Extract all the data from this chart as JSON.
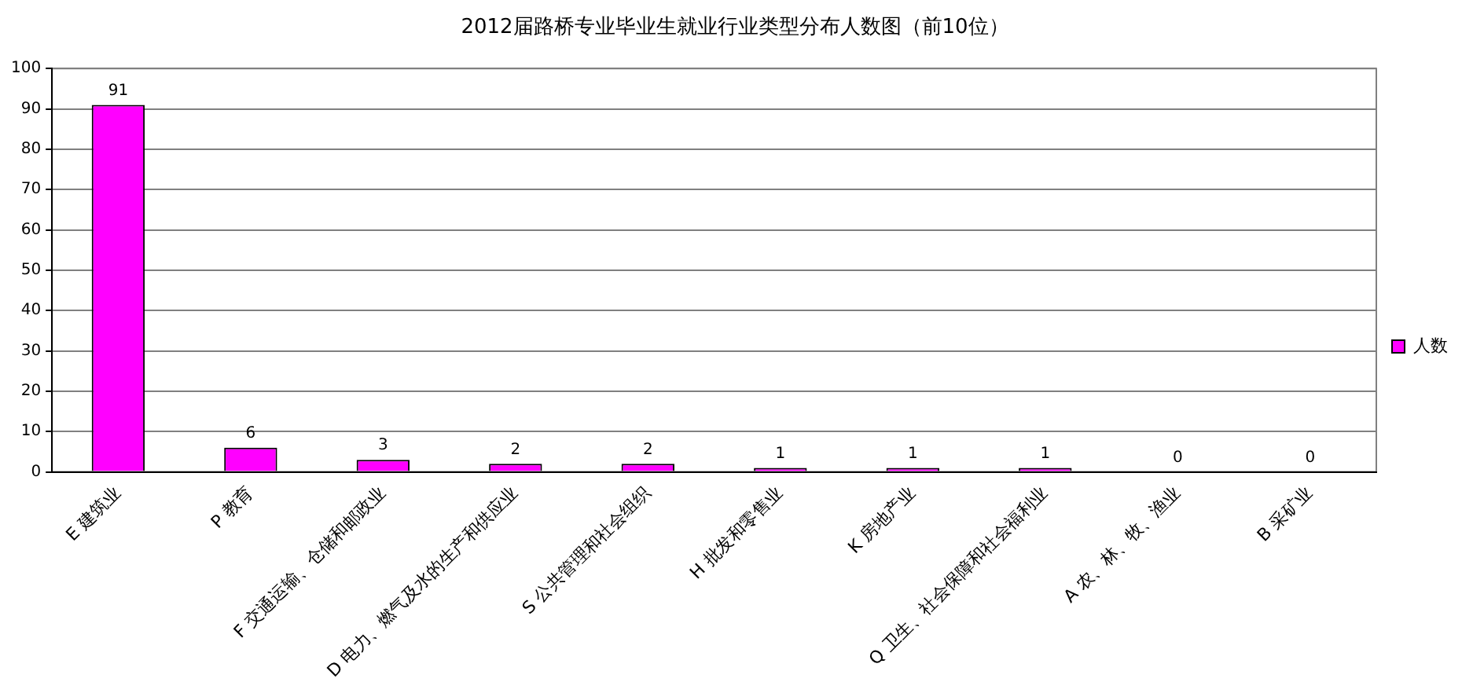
{
  "chart_data": {
    "type": "bar",
    "title": "2012届路桥专业毕业生就业行业类型分布人数图（前10位）",
    "categories": [
      "E 建筑业",
      "P 教育",
      "F 交通运输、仓储和邮政业",
      "D 电力、燃气及水的生产和供应业",
      "S 公共管理和社会组织",
      "H 批发和零售业",
      "K 房地产业",
      "Q 卫生、社会保障和社会福利业",
      "A 农、林、牧、渔业",
      "B 采矿业"
    ],
    "series": [
      {
        "name": "人数",
        "color": "#ff00ff",
        "values": [
          91,
          6,
          3,
          2,
          2,
          1,
          1,
          1,
          0,
          0
        ]
      }
    ],
    "ylim": [
      0,
      100
    ],
    "yticks": [
      0,
      10,
      20,
      30,
      40,
      50,
      60,
      70,
      80,
      90,
      100
    ],
    "grid": "y",
    "legend": "right",
    "data_labels": true
  }
}
